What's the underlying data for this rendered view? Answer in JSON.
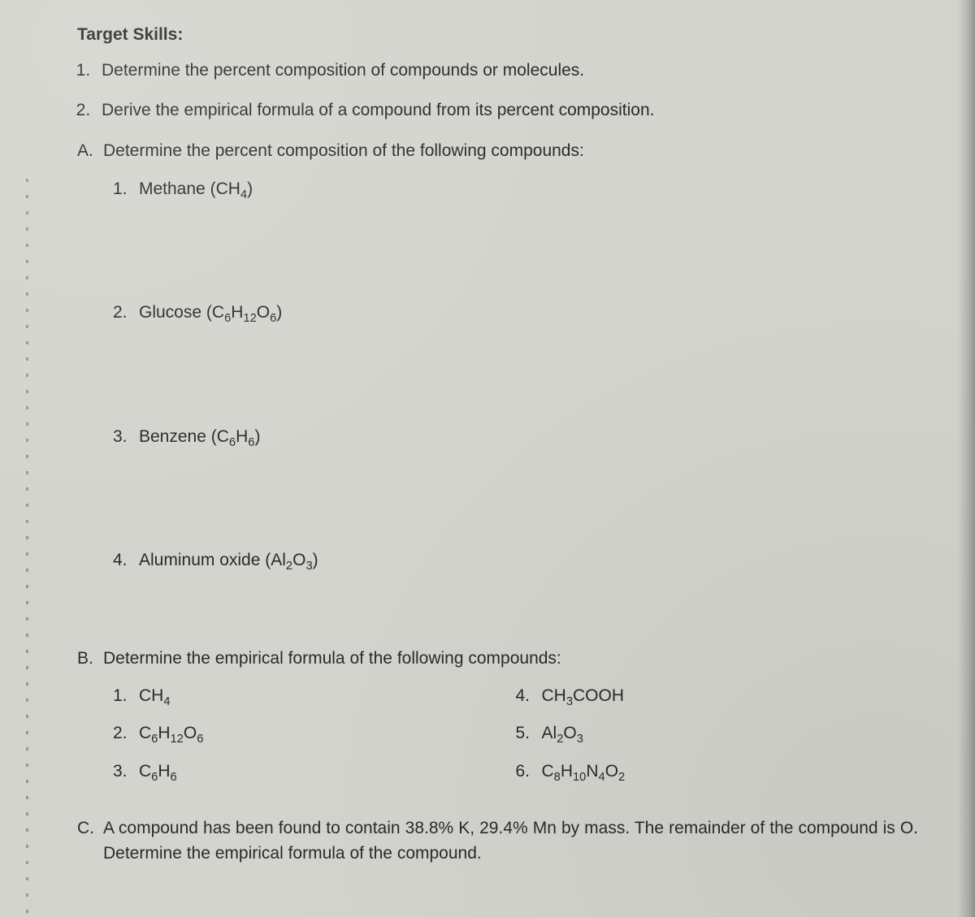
{
  "heading": "Target Skills:",
  "skills": [
    "Determine the percent composition of compounds or molecules.",
    "Derive the empirical formula of a compound from its percent composition."
  ],
  "sectionA": {
    "letter": "A.",
    "prompt": "Determine the percent composition of the following compounds:",
    "items": [
      {
        "num": "1.",
        "name": "Methane",
        "formula_html": "(CH<sub>4</sub>)"
      },
      {
        "num": "2.",
        "name": "Glucose",
        "formula_html": "(C<sub>6</sub>H<sub>12</sub>O<sub>6</sub>)"
      },
      {
        "num": "3.",
        "name": "Benzene",
        "formula_html": "(C<sub>6</sub>H<sub>6</sub>)"
      },
      {
        "num": "4.",
        "name": "Aluminum oxide",
        "formula_html": "(Al<sub>2</sub>O<sub>3</sub>)"
      }
    ]
  },
  "sectionB": {
    "letter": "B.",
    "prompt": "Determine the empirical formula of the  following compounds:",
    "left": [
      {
        "num": "1.",
        "formula_html": "CH<sub>4</sub>"
      },
      {
        "num": "2.",
        "formula_html": "C<sub>6</sub>H<sub>12</sub>O<sub>6</sub>"
      },
      {
        "num": "3.",
        "formula_html": "C<sub>6</sub>H<sub>6</sub>"
      }
    ],
    "right": [
      {
        "num": "4.",
        "formula_html": "CH<sub>3</sub>COOH"
      },
      {
        "num": "5.",
        "formula_html": "Al<sub>2</sub>O<sub>3</sub>"
      },
      {
        "num": "6.",
        "formula_html": "C<sub>8</sub>H<sub>10</sub>N<sub>4</sub>O<sub>2</sub>"
      }
    ]
  },
  "sectionC": {
    "letter": "C.",
    "text": "A compound has been found to contain 38.8% K, 29.4% Mn by mass. The remainder of the compound is O. Determine the empirical formula of the compound."
  },
  "style": {
    "background": "#d4d4ce",
    "text_color": "#2a2a2a",
    "font_size_pt": 16,
    "heading_weight": 700
  }
}
